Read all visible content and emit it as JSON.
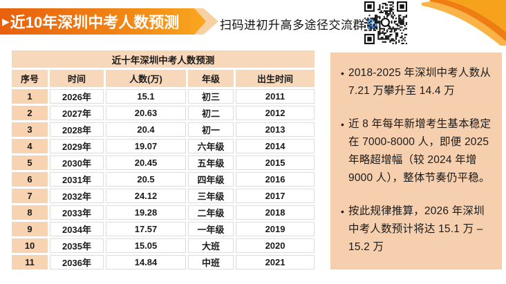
{
  "banner": {
    "title": "近10年深圳中考人数预测"
  },
  "scan": {
    "text": "扫码进初升高多途径交流群"
  },
  "table": {
    "title": "近十年深圳中考人数预测",
    "columns": [
      "序号",
      "时间",
      "人数(万)",
      "年级",
      "出生时间"
    ],
    "rows": [
      [
        "1",
        "2026年",
        "15.1",
        "初三",
        "2011"
      ],
      [
        "2",
        "2027年",
        "20.63",
        "初二",
        "2012"
      ],
      [
        "3",
        "2028年",
        "20.4",
        "初一",
        "2013"
      ],
      [
        "4",
        "2029年",
        "19.07",
        "六年级",
        "2014"
      ],
      [
        "5",
        "2030年",
        "20.45",
        "五年级",
        "2015"
      ],
      [
        "6",
        "2031年",
        "20.5",
        "四年级",
        "2016"
      ],
      [
        "7",
        "2032年",
        "24.12",
        "三年级",
        "2017"
      ],
      [
        "8",
        "2033年",
        "19.28",
        "二年级",
        "2018"
      ],
      [
        "9",
        "2034年",
        "17.57",
        "一年级",
        "2019"
      ],
      [
        "10",
        "2035年",
        "15.05",
        "大班",
        "2020"
      ],
      [
        "11",
        "2036年",
        "14.84",
        "中班",
        "2021"
      ]
    ]
  },
  "panel": {
    "bullets": [
      "2018-2025 年深圳中考人数从 7.21 万攀升至 14.4 万",
      "近 8 年每年新增考生基本稳定在 7000-8000 人，即便 2025 年略超增幅（较 2024 年增 9000 人），整体节奏仍平稳。",
      "按此规律推算，2026 年深圳中考人数预计将达 15.1 万 – 15.2 万"
    ]
  },
  "colors": {
    "banner_gradient_start": "#e8600d",
    "banner_gradient_end": "#f9a71f",
    "banner_chevron": "#f8d0a2",
    "table_header_bg": "#f7d8ba",
    "seq_column_bg": "#f7d3b2",
    "panel_bg": "#f5cfae",
    "arrow_chip_blue": "#3c7fc4",
    "text": "#1a1a1a"
  }
}
